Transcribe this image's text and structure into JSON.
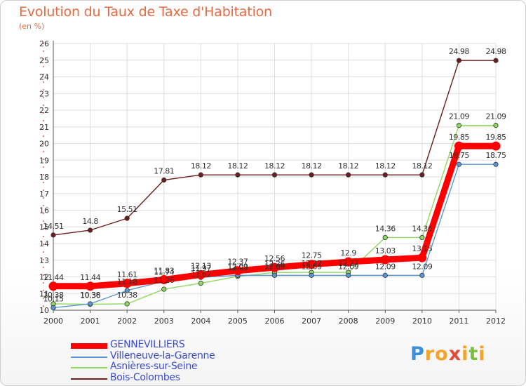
{
  "page": {
    "title": "Evolution du Taux de Taxe d'Habitation",
    "subtitle": "(en %)"
  },
  "chart_data": {
    "type": "line",
    "title": "Evolution du Taux de Taxe d'Habitation",
    "ylabel": "(en %)",
    "xlabel": "",
    "x": [
      "2000",
      "2001",
      "2002",
      "2003",
      "2004",
      "2005",
      "2006",
      "2007",
      "2008",
      "2009",
      "2010",
      "2011",
      "2012"
    ],
    "ylim": [
      10,
      26
    ],
    "yticks": [
      10,
      11,
      12,
      13,
      14,
      15,
      16,
      17,
      18,
      19,
      20,
      21,
      22,
      23,
      24,
      25,
      26
    ],
    "grid": true,
    "series": [
      {
        "name": "GENNEVILLIERS",
        "color": "#ff0000",
        "values": [
          11.44,
          11.44,
          11.61,
          11.83,
          12.13,
          12.37,
          12.56,
          12.75,
          12.9,
          13.03,
          13.15,
          19.85,
          19.85
        ],
        "labels": [
          "11.44",
          "11.44",
          "11.61",
          "11.83",
          "12.13",
          "12.37",
          "12.56",
          "12.75",
          "12.9",
          "13.03",
          "13.15",
          "19.85",
          "19.85"
        ]
      },
      {
        "name": "Villeneuve-la-Garenne",
        "color": "#5b96d6",
        "values": [
          10.15,
          10.38,
          11.18,
          11.74,
          11.97,
          12.09,
          12.09,
          12.09,
          12.09,
          12.09,
          12.09,
          18.75,
          18.75
        ],
        "labels": [
          "10.15",
          "10.38",
          "11.18",
          "11.74",
          "11.97",
          "12.09",
          "12.09",
          "12.09",
          "12.09",
          "12.09",
          "12.09",
          "18.75",
          "18.75"
        ]
      },
      {
        "name": "Asnières-sur-Seine",
        "color": "#8fd860",
        "values": [
          10.38,
          10.36,
          10.38,
          11.26,
          11.62,
          12.03,
          12.26,
          12.27,
          12.27,
          14.36,
          14.36,
          21.09,
          21.09
        ],
        "labels": [
          "10.38",
          "10.36",
          "10.38",
          "11.26",
          "11.62",
          "12.03",
          "12.26",
          "12.27",
          "12.27",
          "14.36",
          "14.36",
          "21.09",
          "21.09"
        ]
      },
      {
        "name": "Bois-Colombes",
        "color": "#6e1c1c",
        "values": [
          14.51,
          14.8,
          15.51,
          17.81,
          18.12,
          18.12,
          18.12,
          18.12,
          18.12,
          18.12,
          18.12,
          24.98,
          24.98
        ],
        "labels": [
          "14.51",
          "14.8",
          "15.51",
          "17.81",
          "18.12",
          "18.12",
          "18.12",
          "18.12",
          "18.12",
          "18.12",
          "18.12",
          "24.98",
          "24.98"
        ]
      }
    ],
    "legend_position": "bottom-left"
  },
  "logo": {
    "letters": [
      "P",
      "r",
      "o",
      "x",
      "i",
      "t",
      "i"
    ],
    "colors": [
      "#3b8fd8",
      "#f2a22d",
      "#f2a22d",
      "#e44b3a",
      "#f2a22d",
      "#7bbf3a",
      "#f2a22d"
    ]
  }
}
